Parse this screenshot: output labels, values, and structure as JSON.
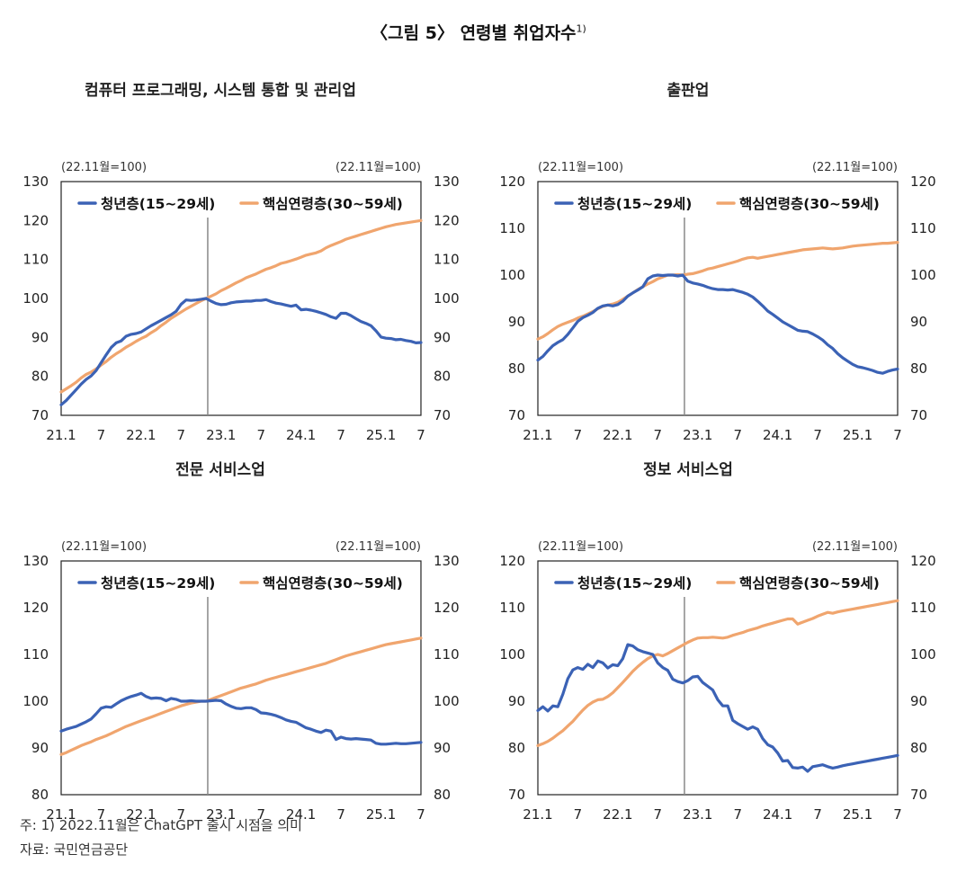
{
  "figure": {
    "title": "〈그림 5〉 연령별 취업자수",
    "title_sup": "1)"
  },
  "colors": {
    "youth": "#3b62b5",
    "core": "#f0a56e",
    "axis": "#222222",
    "marker": "#888888"
  },
  "notes": {
    "note1": "주: 1) 2022.11월은 ChatGPT 출시 시점을 의미",
    "source": "자료: 국민연금공단"
  },
  "chart_data": [
    {
      "id": "computer",
      "type": "line",
      "title": "컴퓨터 프로그래밍, 시스템 통합 및 관리업",
      "unit_left": "(22.11월=100)",
      "unit_right": "(22.11월=100)",
      "x_ticks": [
        "21.1",
        "7",
        "22.1",
        "7",
        "23.1",
        "7",
        "24.1",
        "7",
        "25.1",
        "7"
      ],
      "x_range": [
        "2021-01",
        "2025-07"
      ],
      "marker": "2022-11",
      "ylim": [
        70,
        130
      ],
      "yticks": [
        70,
        80,
        90,
        100,
        110,
        120,
        130
      ],
      "series": [
        {
          "name": "청년층(15~29세)",
          "key": "youth",
          "values": [
            72.7,
            73.8,
            75.2,
            76.6,
            78.0,
            79.2,
            80.1,
            81.5,
            83.5,
            85.5,
            87.4,
            88.6,
            89.1,
            90.3,
            90.8,
            91.0,
            91.4,
            92.2,
            93.0,
            93.7,
            94.4,
            95.1,
            95.8,
            96.7,
            98.5,
            99.6,
            99.5,
            99.6,
            99.8,
            100.0,
            99.3,
            98.7,
            98.4,
            98.5,
            98.9,
            99.1,
            99.2,
            99.3,
            99.3,
            99.5,
            99.5,
            99.7,
            99.2,
            98.8,
            98.6,
            98.3,
            98.0,
            98.3,
            97.1,
            97.2,
            97.0,
            96.7,
            96.3,
            95.9,
            95.3,
            94.9,
            96.2,
            96.2,
            95.6,
            94.8,
            94.1,
            93.6,
            93.0,
            91.7,
            90.1,
            89.8,
            89.7,
            89.4,
            89.5,
            89.2,
            89.0,
            88.6,
            88.7
          ]
        },
        {
          "name": "핵심연령층(30~59세)",
          "key": "core",
          "values": [
            76.0,
            76.8,
            77.6,
            78.5,
            79.6,
            80.5,
            81.1,
            81.9,
            82.9,
            83.8,
            84.9,
            85.8,
            86.6,
            87.5,
            88.2,
            89.0,
            89.7,
            90.3,
            91.2,
            92.0,
            93.0,
            93.9,
            94.9,
            95.7,
            96.5,
            97.3,
            98.0,
            98.7,
            99.4,
            100.0,
            100.6,
            101.2,
            102.0,
            102.6,
            103.3,
            104.0,
            104.6,
            105.3,
            105.8,
            106.3,
            106.9,
            107.5,
            107.9,
            108.4,
            109.0,
            109.3,
            109.7,
            110.1,
            110.6,
            111.1,
            111.4,
            111.7,
            112.2,
            113.0,
            113.6,
            114.1,
            114.6,
            115.2,
            115.6,
            116.0,
            116.4,
            116.8,
            117.2,
            117.6,
            118.0,
            118.4,
            118.7,
            119.0,
            119.2,
            119.4,
            119.6,
            119.8,
            120.0
          ]
        }
      ]
    },
    {
      "id": "publishing",
      "type": "line",
      "title": "출판업",
      "unit_left": "(22.11월=100)",
      "unit_right": "(22.11월=100)",
      "x_ticks": [
        "21.1",
        "7",
        "22.1",
        "7",
        "23.1",
        "7",
        "24.1",
        "7",
        "25.1",
        "7"
      ],
      "x_range": [
        "2021-01",
        "2025-07"
      ],
      "marker": "2022-11",
      "ylim": [
        70,
        120
      ],
      "yticks": [
        70,
        80,
        90,
        100,
        110,
        120
      ],
      "series": [
        {
          "name": "청년층(15~29세)",
          "key": "youth",
          "values": [
            81.8,
            82.6,
            83.8,
            84.9,
            85.6,
            86.2,
            87.3,
            88.7,
            90.1,
            90.9,
            91.4,
            92.0,
            92.9,
            93.4,
            93.6,
            93.4,
            93.7,
            94.4,
            95.5,
            96.2,
            96.8,
            97.5,
            99.2,
            99.8,
            100.0,
            99.9,
            100.0,
            100.0,
            99.8,
            100.0,
            98.7,
            98.3,
            98.1,
            97.8,
            97.4,
            97.1,
            96.9,
            96.9,
            96.8,
            96.9,
            96.6,
            96.3,
            95.9,
            95.3,
            94.4,
            93.4,
            92.3,
            91.6,
            90.8,
            90.0,
            89.4,
            88.8,
            88.2,
            88.0,
            87.9,
            87.4,
            86.8,
            86.1,
            85.1,
            84.3,
            83.2,
            82.3,
            81.6,
            80.9,
            80.4,
            80.2,
            79.9,
            79.6,
            79.2,
            79.0,
            79.4,
            79.7,
            79.9
          ]
        },
        {
          "name": "핵심연령층(30~59세)",
          "key": "core",
          "values": [
            86.3,
            86.8,
            87.5,
            88.3,
            89.0,
            89.5,
            89.9,
            90.3,
            90.8,
            91.2,
            91.7,
            92.2,
            92.8,
            93.3,
            93.6,
            93.8,
            94.2,
            94.8,
            95.5,
            96.2,
            96.9,
            97.5,
            98.1,
            98.6,
            99.2,
            99.6,
            100.0,
            100.0,
            100.1,
            100.0,
            100.2,
            100.3,
            100.6,
            100.9,
            101.3,
            101.5,
            101.8,
            102.1,
            102.4,
            102.7,
            103.0,
            103.4,
            103.7,
            103.8,
            103.6,
            103.8,
            104.0,
            104.2,
            104.4,
            104.6,
            104.8,
            105.0,
            105.2,
            105.4,
            105.5,
            105.6,
            105.7,
            105.8,
            105.7,
            105.6,
            105.7,
            105.8,
            106.0,
            106.2,
            106.3,
            106.4,
            106.5,
            106.6,
            106.7,
            106.8,
            106.8,
            106.9,
            107.0
          ]
        }
      ]
    },
    {
      "id": "professional",
      "type": "line",
      "title": "전문 서비스업",
      "unit_left": "(22.11월=100)",
      "unit_right": "(22.11월=100)",
      "x_ticks": [
        "21.1",
        "7",
        "22.1",
        "7",
        "23.1",
        "7",
        "24.1",
        "7",
        "25.1",
        "7"
      ],
      "x_range": [
        "2021-01",
        "2025-07"
      ],
      "marker": "2022-11",
      "ylim": [
        80,
        130
      ],
      "yticks": [
        80,
        90,
        100,
        110,
        120,
        130
      ],
      "series": [
        {
          "name": "청년층(15~29세)",
          "key": "youth",
          "values": [
            93.6,
            94.0,
            94.3,
            94.6,
            95.1,
            95.6,
            96.2,
            97.3,
            98.5,
            98.8,
            98.7,
            99.4,
            100.1,
            100.6,
            101.0,
            101.3,
            101.7,
            101.0,
            100.6,
            100.7,
            100.6,
            100.1,
            100.6,
            100.4,
            100.0,
            100.0,
            100.1,
            100.0,
            100.0,
            100.0,
            100.1,
            100.2,
            100.1,
            99.4,
            98.9,
            98.5,
            98.4,
            98.6,
            98.6,
            98.2,
            97.5,
            97.4,
            97.2,
            96.9,
            96.5,
            96.0,
            95.7,
            95.5,
            94.9,
            94.3,
            94.0,
            93.6,
            93.3,
            93.8,
            93.6,
            91.8,
            92.3,
            92.0,
            91.9,
            92.0,
            91.9,
            91.8,
            91.7,
            91.0,
            90.8,
            90.8,
            90.9,
            91.0,
            90.9,
            90.9,
            91.0,
            91.1,
            91.2
          ]
        },
        {
          "name": "핵심연령층(30~59세)",
          "key": "core",
          "values": [
            88.6,
            89.0,
            89.5,
            90.0,
            90.5,
            90.9,
            91.3,
            91.8,
            92.2,
            92.6,
            93.1,
            93.6,
            94.1,
            94.6,
            95.0,
            95.4,
            95.8,
            96.2,
            96.6,
            97.0,
            97.4,
            97.8,
            98.2,
            98.6,
            99.0,
            99.3,
            99.6,
            99.8,
            100.0,
            100.0,
            100.4,
            100.8,
            101.2,
            101.6,
            102.0,
            102.4,
            102.8,
            103.1,
            103.4,
            103.7,
            104.1,
            104.5,
            104.8,
            105.1,
            105.4,
            105.7,
            106.0,
            106.3,
            106.6,
            106.9,
            107.2,
            107.5,
            107.8,
            108.1,
            108.5,
            108.9,
            109.3,
            109.7,
            110.0,
            110.3,
            110.6,
            110.9,
            111.2,
            111.5,
            111.8,
            112.1,
            112.3,
            112.5,
            112.7,
            112.9,
            113.1,
            113.3,
            113.5
          ]
        }
      ]
    },
    {
      "id": "information",
      "type": "line",
      "title": "정보 서비스업",
      "unit_left": "(22.11월=100)",
      "unit_right": "(22.11월=100)",
      "x_ticks": [
        "21.1",
        "7",
        "22.1",
        "7",
        "23.1",
        "7",
        "24.1",
        "7",
        "25.1",
        "7"
      ],
      "x_range": [
        "2021-01",
        "2025-07"
      ],
      "marker": "2022-11",
      "ylim": [
        70,
        120
      ],
      "yticks": [
        70,
        80,
        90,
        100,
        110,
        120
      ],
      "series": [
        {
          "name": "청년층(15~29세)",
          "key": "youth",
          "values": [
            88.0,
            88.8,
            87.9,
            89.0,
            88.8,
            91.5,
            94.8,
            96.7,
            97.2,
            96.8,
            97.9,
            97.2,
            98.6,
            98.2,
            97.1,
            97.8,
            97.6,
            99.1,
            102.1,
            101.8,
            101.0,
            100.6,
            100.3,
            100.0,
            98.2,
            97.2,
            96.6,
            94.7,
            94.2,
            93.9,
            94.4,
            95.2,
            95.3,
            94.0,
            93.2,
            92.4,
            90.3,
            89.0,
            89.0,
            85.9,
            85.2,
            84.6,
            84.0,
            84.5,
            84.0,
            82.0,
            80.7,
            80.2,
            78.9,
            77.2,
            77.3,
            75.8,
            75.7,
            75.9,
            75.0,
            76.0,
            76.2,
            76.4,
            76.0,
            75.7,
            75.9,
            76.2,
            76.4,
            76.6,
            76.8,
            77.0,
            77.2,
            77.4,
            77.6,
            77.8,
            78.0,
            78.2,
            78.4
          ]
        },
        {
          "name": "핵심연령층(30~59세)",
          "key": "core",
          "values": [
            80.5,
            80.9,
            81.4,
            82.1,
            82.9,
            83.7,
            84.7,
            85.7,
            86.9,
            88.1,
            89.1,
            89.8,
            90.3,
            90.4,
            91.0,
            91.8,
            92.9,
            94.0,
            95.2,
            96.4,
            97.4,
            98.3,
            99.1,
            99.7,
            100.0,
            99.7,
            100.2,
            100.8,
            101.4,
            102.0,
            102.6,
            103.1,
            103.5,
            103.6,
            103.6,
            103.7,
            103.6,
            103.5,
            103.7,
            104.1,
            104.4,
            104.7,
            105.1,
            105.4,
            105.7,
            106.1,
            106.4,
            106.7,
            107.0,
            107.3,
            107.6,
            107.6,
            106.5,
            106.9,
            107.3,
            107.7,
            108.2,
            108.6,
            109.0,
            108.8,
            109.1,
            109.3,
            109.5,
            109.7,
            109.9,
            110.1,
            110.3,
            110.5,
            110.7,
            110.9,
            111.1,
            111.3,
            111.5
          ]
        }
      ]
    }
  ]
}
